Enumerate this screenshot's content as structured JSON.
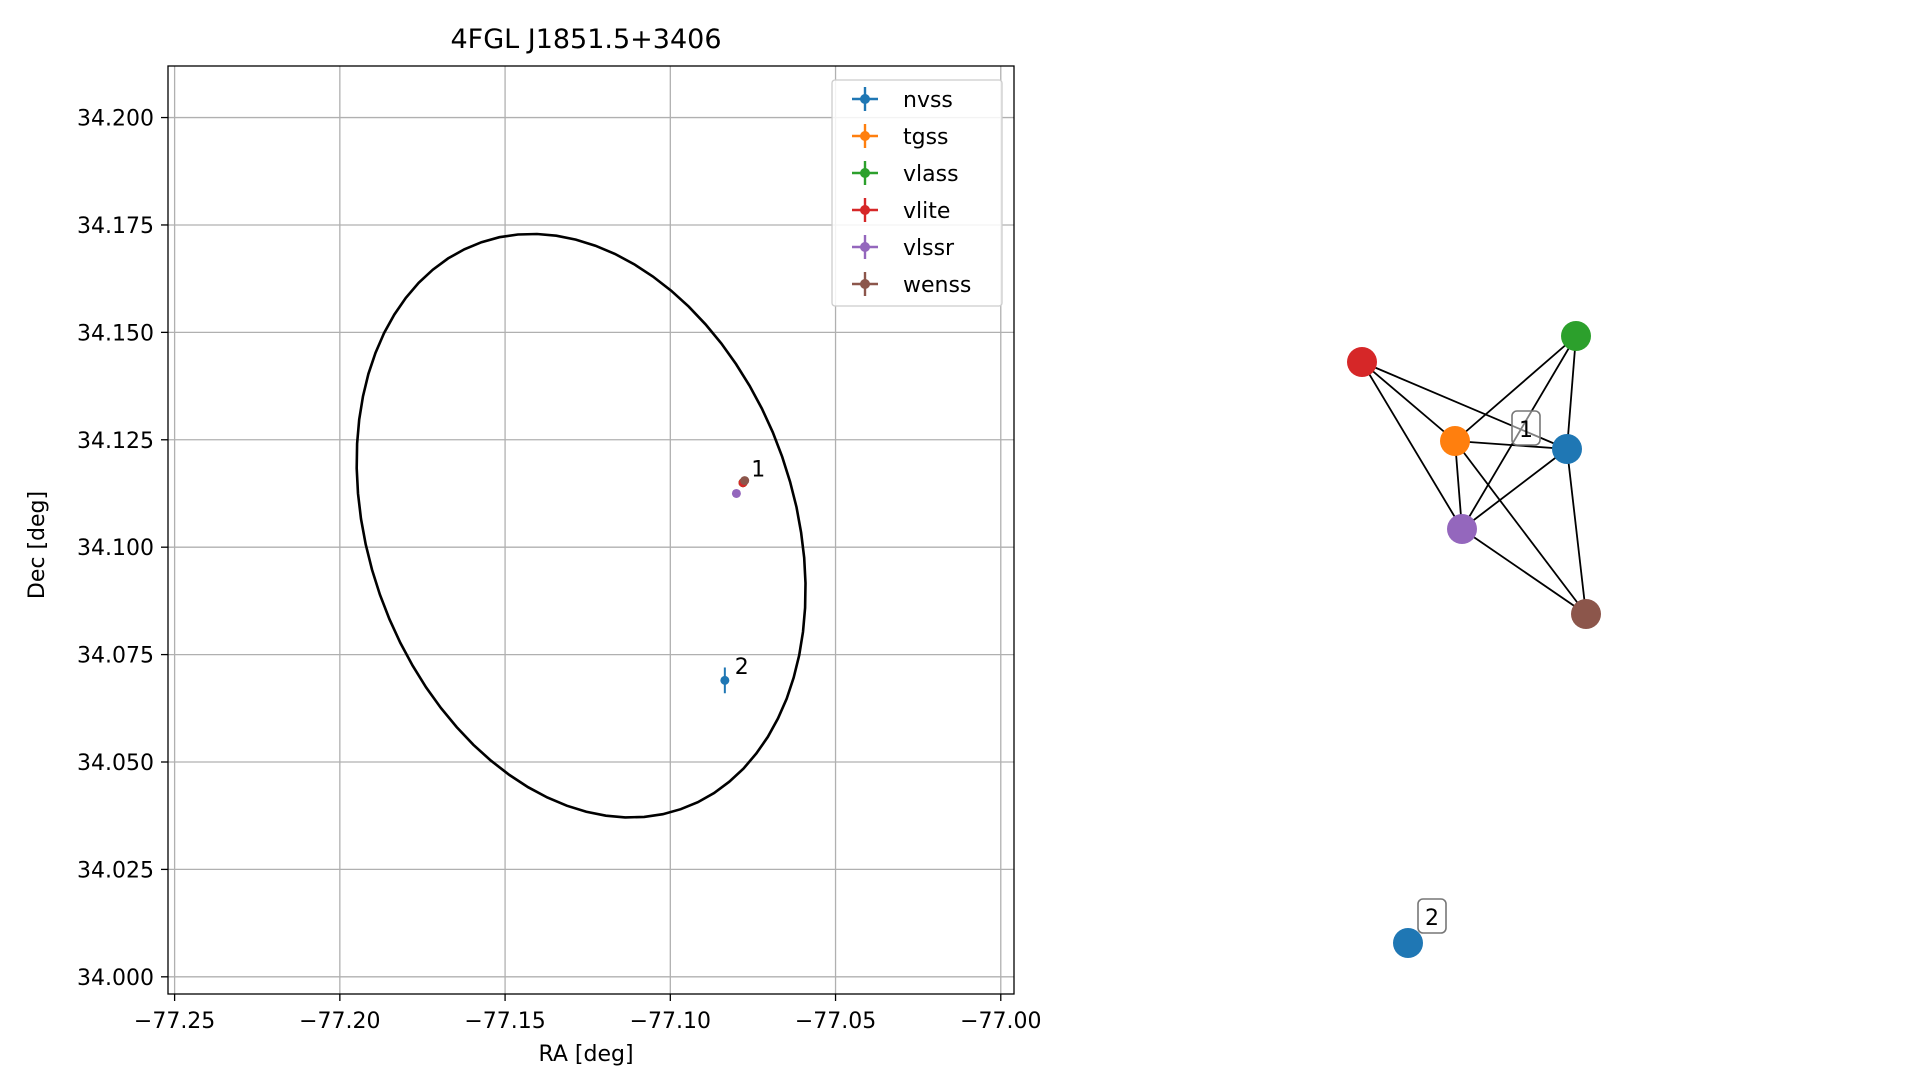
{
  "chart_data": [
    {
      "type": "scatter",
      "title": "4FGL J1851.5+3406",
      "xlabel": "RA [deg]",
      "ylabel": "Dec [deg]",
      "xlim": [
        -77.252,
        -76.996
      ],
      "ylim": [
        33.996,
        34.212
      ],
      "grid": true,
      "legend_position": "top-right",
      "x_ticks": [
        {
          "value": -77.25,
          "label": "−77.25"
        },
        {
          "value": -77.2,
          "label": "−77.20"
        },
        {
          "value": -77.15,
          "label": "−77.15"
        },
        {
          "value": -77.1,
          "label": "−77.10"
        },
        {
          "value": -77.05,
          "label": "−77.05"
        },
        {
          "value": -77.0,
          "label": "−77.00"
        }
      ],
      "y_ticks": [
        {
          "value": 34.0,
          "label": "34.000"
        },
        {
          "value": 34.025,
          "label": "34.025"
        },
        {
          "value": 34.05,
          "label": "34.050"
        },
        {
          "value": 34.075,
          "label": "34.075"
        },
        {
          "value": 34.1,
          "label": "34.100"
        },
        {
          "value": 34.125,
          "label": "34.125"
        },
        {
          "value": 34.15,
          "label": "34.150"
        },
        {
          "value": 34.175,
          "label": "34.175"
        },
        {
          "value": 34.2,
          "label": "34.200"
        }
      ],
      "ellipse": {
        "center": [
          -77.127,
          34.105
        ],
        "semi_axes_deg": [
          0.075,
          0.06
        ],
        "angle_deg": -45,
        "color": "#000000"
      },
      "series": [
        {
          "name": "nvss",
          "color": "#1f77b4",
          "points": [
            {
              "ra": -77.0835,
              "dec": 34.069,
              "ra_err": 0.0004,
              "dec_err": 0.003
            }
          ]
        },
        {
          "name": "tgss",
          "color": "#ff7f0e",
          "points": [
            {
              "ra": -77.078,
              "dec": 34.115,
              "ra_err": 0.0005,
              "dec_err": 0.0006
            }
          ]
        },
        {
          "name": "vlass",
          "color": "#2ca02c",
          "points": [
            {
              "ra": -77.078,
              "dec": 34.115,
              "ra_err": 0.0002,
              "dec_err": 0.0002
            }
          ]
        },
        {
          "name": "vlite",
          "color": "#d62728",
          "points": [
            {
              "ra": -77.078,
              "dec": 34.115,
              "ra_err": 0.0005,
              "dec_err": 0.0006
            }
          ]
        },
        {
          "name": "vlssr",
          "color": "#9467bd",
          "points": [
            {
              "ra": -77.08,
              "dec": 34.1125,
              "ra_err": 0.0005,
              "dec_err": 0.0006
            }
          ]
        },
        {
          "name": "wenss",
          "color": "#8c564b",
          "points": [
            {
              "ra": -77.0775,
              "dec": 34.1155,
              "ra_err": 0.0006,
              "dec_err": 0.0007
            }
          ]
        }
      ],
      "annotations": [
        {
          "text": "1",
          "ra": -77.0755,
          "dec": 34.1165
        },
        {
          "text": "2",
          "ra": -77.0805,
          "dec": 34.0705
        }
      ]
    },
    {
      "type": "network",
      "nodes": [
        {
          "id": "nvss",
          "color": "#1f77b4"
        },
        {
          "id": "tgss",
          "color": "#ff7f0e"
        },
        {
          "id": "vlass",
          "color": "#2ca02c"
        },
        {
          "id": "vlite",
          "color": "#d62728"
        },
        {
          "id": "vlssr",
          "color": "#9467bd"
        },
        {
          "id": "wenss",
          "color": "#8c564b"
        },
        {
          "id": "nvss-2",
          "color": "#1f77b4"
        }
      ],
      "edges": [
        [
          "vlite",
          "tgss"
        ],
        [
          "vlite",
          "nvss"
        ],
        [
          "vlite",
          "vlssr"
        ],
        [
          "vlass",
          "tgss"
        ],
        [
          "vlass",
          "nvss"
        ],
        [
          "vlass",
          "vlssr"
        ],
        [
          "tgss",
          "nvss"
        ],
        [
          "tgss",
          "vlssr"
        ],
        [
          "tgss",
          "wenss"
        ],
        [
          "vlssr",
          "nvss"
        ],
        [
          "vlssr",
          "wenss"
        ],
        [
          "nvss",
          "wenss"
        ]
      ],
      "cluster_labels": [
        {
          "text": "1",
          "near": "nvss"
        },
        {
          "text": "2",
          "near": "nvss-2"
        }
      ]
    }
  ]
}
